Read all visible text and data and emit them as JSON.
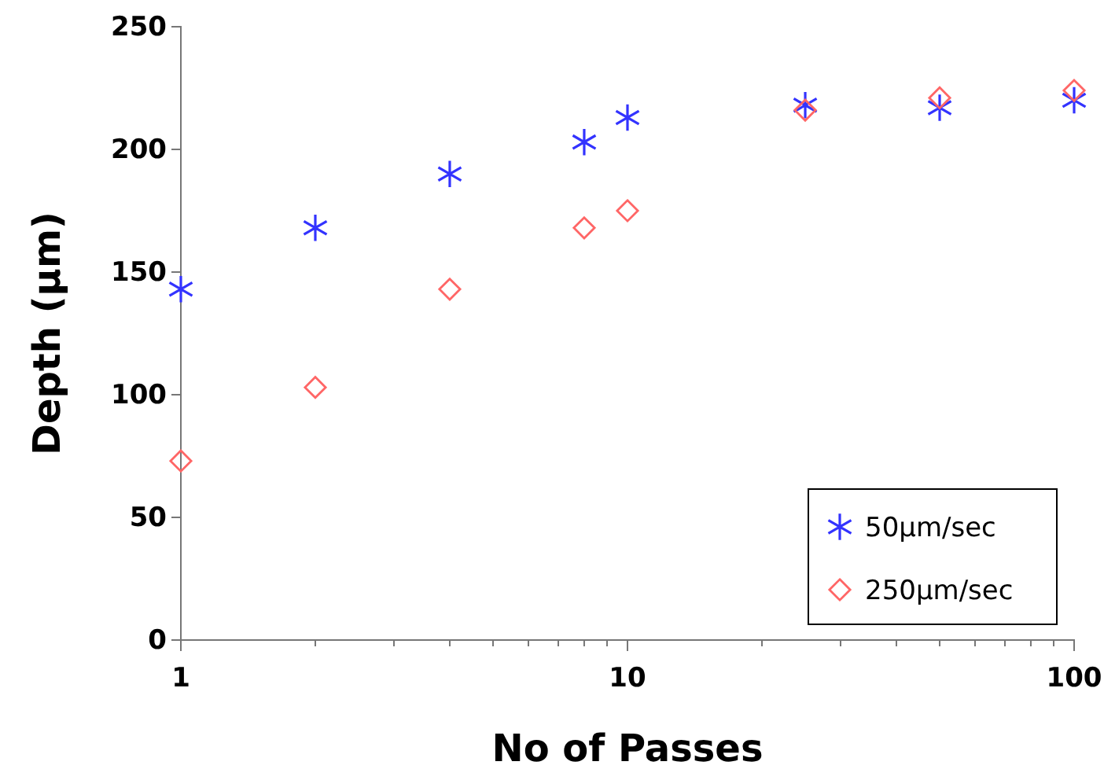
{
  "chart_data": {
    "type": "scatter",
    "xlabel": "No of Passes",
    "ylabel": "Depth (µm)",
    "log": "x",
    "xlim": [
      1,
      100
    ],
    "xticks": [
      1,
      {
        "value": 2,
        "label": null
      },
      {
        "value": 3,
        "label": null
      },
      {
        "value": 4,
        "label": null
      },
      {
        "value": 5,
        "label": null
      },
      {
        "value": 6,
        "label": null
      },
      {
        "value": 7,
        "label": null
      },
      {
        "value": 8,
        "label": null
      },
      {
        "value": 9,
        "label": null
      },
      10,
      {
        "value": 20,
        "label": null
      },
      {
        "value": 30,
        "label": null
      },
      {
        "value": 40,
        "label": null
      },
      {
        "value": 50,
        "label": null
      },
      {
        "value": 60,
        "label": null
      },
      {
        "value": 70,
        "label": null
      },
      {
        "value": 80,
        "label": null
      },
      {
        "value": 90,
        "label": null
      },
      100
    ],
    "ylim": [
      0,
      250
    ],
    "yticks": [
      0,
      50,
      100,
      150,
      200,
      250
    ],
    "grid": false,
    "legend": "bottom right",
    "x": [
      1,
      2,
      4,
      8,
      10,
      25,
      50,
      100
    ],
    "series": [
      {
        "name": "50µm/sec",
        "color": "#3333ff",
        "marker": "cross",
        "values": [
          143,
          168,
          190,
          203,
          213,
          218,
          217,
          220
        ]
      },
      {
        "name": "250µm/sec",
        "color": "#ff6666",
        "marker": "diamond",
        "values": [
          73,
          103,
          143,
          168,
          175,
          216,
          221,
          224
        ]
      }
    ]
  }
}
